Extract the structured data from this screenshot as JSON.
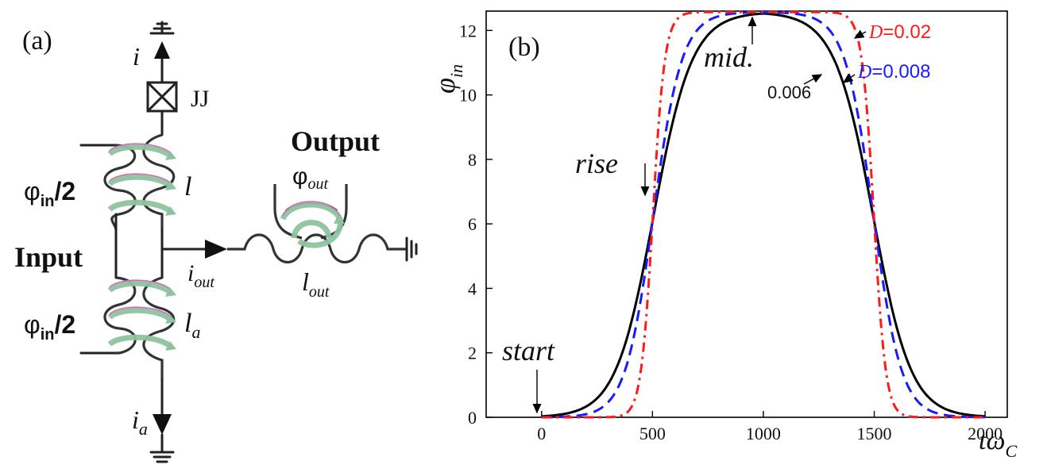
{
  "panel_a": {
    "label": "(a)",
    "current_top": "i",
    "jj_label": "JJ",
    "inductor_l": "l",
    "phi_in_half_top": "φin/2",
    "phi_in_half_bottom": "φin/2",
    "phi_symbol": "φ",
    "phi_sub": "in",
    "half": "/2",
    "input_label": "Input",
    "output_label": "Output",
    "phi_out_base": "φ",
    "phi_out_sub": "out",
    "i_out_base": "i",
    "i_out_sub": "out",
    "l_out_base": "l",
    "l_out_sub": "out",
    "l_a_base": "l",
    "l_a_sub": "a",
    "i_a_base": "i",
    "i_a_sub": "a"
  },
  "chart_data": {
    "type": "line",
    "panel_label": "(b)",
    "ylabel_base": "φ",
    "ylabel_sub": "in",
    "xlabel_base": "tω",
    "xlabel_sub": "C",
    "xlim": [
      -250,
      2100
    ],
    "ylim": [
      0,
      12.6
    ],
    "xticks": [
      0,
      500,
      1000,
      1500,
      2000
    ],
    "yticks": [
      0,
      2,
      4,
      6,
      8,
      10,
      12
    ],
    "series": [
      {
        "name": "D=0.006",
        "color": "#000000",
        "style": "solid",
        "D": 0.006
      },
      {
        "name": "D=0.008",
        "color": "#1a1aff",
        "style": "dashed",
        "D": 0.008
      },
      {
        "name": "D=0.02",
        "color": "#ff1a1a",
        "style": "dashdot",
        "D": 0.02
      }
    ],
    "legend_d002_prefix": "D",
    "legend_d002_value": "=0.02",
    "legend_d0008_prefix": "D",
    "legend_d0008_value": "=0.008",
    "label_0006": "0.006",
    "annotations": {
      "start": "start",
      "rise": "rise",
      "mid": "mid."
    }
  }
}
